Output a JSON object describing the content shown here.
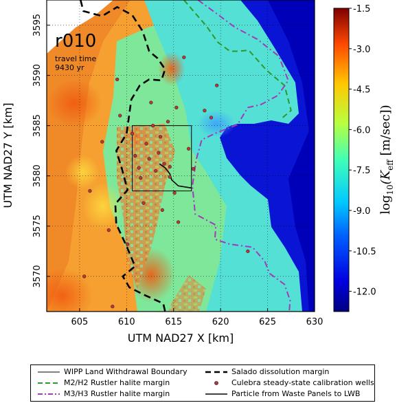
{
  "chart_data": {
    "type": "heatmap",
    "xlabel": "UTM NAD27 X [km]",
    "ylabel": "UTM NAD27 Y [km]",
    "xlim": [
      601.5,
      630
    ],
    "ylim": [
      3566.5,
      3597.5
    ],
    "xticks": [
      "605",
      "610",
      "615",
      "620",
      "625",
      "630"
    ],
    "yticks": [
      "3570",
      "3575",
      "3580",
      "3585",
      "3590",
      "3595"
    ],
    "grid": true,
    "annotation": {
      "realization": "r010",
      "line1": "travel time",
      "line2": "9430 yr"
    },
    "colorbar": {
      "label_prefix": "log",
      "label_sub": "10",
      "label_var": "(K",
      "label_var_sub": "eff",
      "label_suffix": " [m/sec])",
      "ticks": [
        "-1.5",
        "-3.0",
        "-4.5",
        "-6.0",
        "-7.5",
        "-9.0",
        "-10.5",
        "-12.0"
      ],
      "vmin": -12.75,
      "vmax": -1.5
    },
    "wipp_boundary": {
      "x": [
        610.6,
        616.9
      ],
      "y": [
        3578.5,
        3585.0
      ]
    },
    "particle_path": [
      [
        613.5,
        3581.2
      ],
      [
        614.1,
        3580.8
      ],
      [
        614.6,
        3580.2
      ],
      [
        614.8,
        3579.6
      ],
      [
        615.5,
        3579.0
      ],
      [
        616.9,
        3578.8
      ]
    ],
    "wells": [
      [
        605.5,
        3570.0
      ],
      [
        606.1,
        3578.5
      ],
      [
        607.4,
        3583.4
      ],
      [
        608.1,
        3574.6
      ],
      [
        609.0,
        3589.6
      ],
      [
        610.1,
        3573.2
      ],
      [
        610.6,
        3584.2
      ],
      [
        610.9,
        3582.0
      ],
      [
        611.3,
        3580.8
      ],
      [
        611.5,
        3579.8
      ],
      [
        611.8,
        3577.3
      ],
      [
        612.1,
        3583.2
      ],
      [
        612.4,
        3581.7
      ],
      [
        612.8,
        3585.0
      ],
      [
        613.1,
        3580.5
      ],
      [
        613.4,
        3582.3
      ],
      [
        613.6,
        3583.9
      ],
      [
        613.8,
        3576.6
      ],
      [
        614.0,
        3581.2
      ],
      [
        614.4,
        3585.4
      ],
      [
        614.6,
        3580.9
      ],
      [
        614.6,
        3579.9
      ],
      [
        615.1,
        3578.3
      ],
      [
        615.3,
        3586.8
      ],
      [
        615.5,
        3575.4
      ],
      [
        616.1,
        3591.8
      ],
      [
        616.6,
        3582.7
      ],
      [
        617.1,
        3580.7
      ],
      [
        618.3,
        3586.5
      ],
      [
        619.0,
        3585.8
      ],
      [
        619.6,
        3589.0
      ],
      [
        622.9,
        3572.5
      ],
      [
        612.6,
        3587.3
      ],
      [
        609.3,
        3586.0
      ],
      [
        608.5,
        3567.0
      ]
    ],
    "salado_margin": [
      [
        605.1,
        3597.5
      ],
      [
        605.4,
        3596.4
      ],
      [
        607.4,
        3595.9
      ],
      [
        609.0,
        3596.8
      ],
      [
        610.6,
        3596.0
      ],
      [
        611.7,
        3594.4
      ],
      [
        612.4,
        3592.4
      ],
      [
        613.3,
        3591.7
      ],
      [
        614.1,
        3590.6
      ],
      [
        613.7,
        3589.5
      ],
      [
        612.4,
        3589.6
      ],
      [
        611.4,
        3589.0
      ],
      [
        610.5,
        3587.6
      ],
      [
        610.0,
        3584.2
      ],
      [
        608.9,
        3582.5
      ],
      [
        609.5,
        3580.7
      ],
      [
        610.1,
        3578.6
      ],
      [
        608.8,
        3577.2
      ],
      [
        608.9,
        3575.2
      ],
      [
        610.0,
        3573.0
      ],
      [
        610.9,
        3571.0
      ],
      [
        609.6,
        3570.0
      ],
      [
        610.3,
        3568.9
      ],
      [
        612.0,
        3568.1
      ],
      [
        613.9,
        3567.3
      ],
      [
        614.1,
        3566.5
      ]
    ],
    "m2h2_margin": [
      [
        616.1,
        3597.5
      ],
      [
        617.2,
        3596.3
      ],
      [
        618.5,
        3594.9
      ],
      [
        619.7,
        3593.3
      ],
      [
        621.0,
        3592.4
      ],
      [
        621.9,
        3592.4
      ],
      [
        623.0,
        3592.5
      ],
      [
        624.9,
        3590.5
      ],
      [
        626.8,
        3589.0
      ],
      [
        627.5,
        3586.5
      ],
      [
        626.6,
        3585.8
      ]
    ],
    "m3h3_margin": [
      [
        617.6,
        3597.5
      ],
      [
        619.5,
        3596.2
      ],
      [
        621.5,
        3594.8
      ],
      [
        623.9,
        3593.6
      ],
      [
        626.2,
        3591.9
      ],
      [
        627.2,
        3589.5
      ],
      [
        626.1,
        3588.0
      ],
      [
        624.3,
        3587.1
      ],
      [
        622.9,
        3586.8
      ],
      [
        621.8,
        3585.1
      ],
      [
        619.6,
        3584.3
      ],
      [
        618.0,
        3583.6
      ],
      [
        617.4,
        3581.6
      ],
      [
        617.0,
        3579.0
      ],
      [
        617.3,
        3576.2
      ],
      [
        619.5,
        3575.1
      ],
      [
        619.4,
        3573.7
      ],
      [
        621.0,
        3573.2
      ],
      [
        623.4,
        3572.9
      ],
      [
        624.7,
        3571.5
      ],
      [
        625.2,
        3570.3
      ],
      [
        626.8,
        3569.2
      ],
      [
        627.4,
        3567.6
      ],
      [
        627.3,
        3566.5
      ]
    ],
    "legend": [
      {
        "label": "WIPP Land Withdrawal Boundary",
        "style": "solid-thin",
        "color": "#000000"
      },
      {
        "label": "Salado dissolution margin",
        "style": "dashed-thick",
        "color": "#000000"
      },
      {
        "label": "M2/H2 Rustler halite margin",
        "style": "dashed",
        "color": "#2a9a2a"
      },
      {
        "label": "Culebra steady-state calibration wells",
        "style": "dot",
        "color": "#c83232"
      },
      {
        "label": "M3/H3 Rustler halite margin",
        "style": "dashdot",
        "color": "#a13ab8"
      },
      {
        "label": "Particle from Waste Panels to LWB",
        "style": "solid",
        "color": "#000000"
      }
    ]
  }
}
